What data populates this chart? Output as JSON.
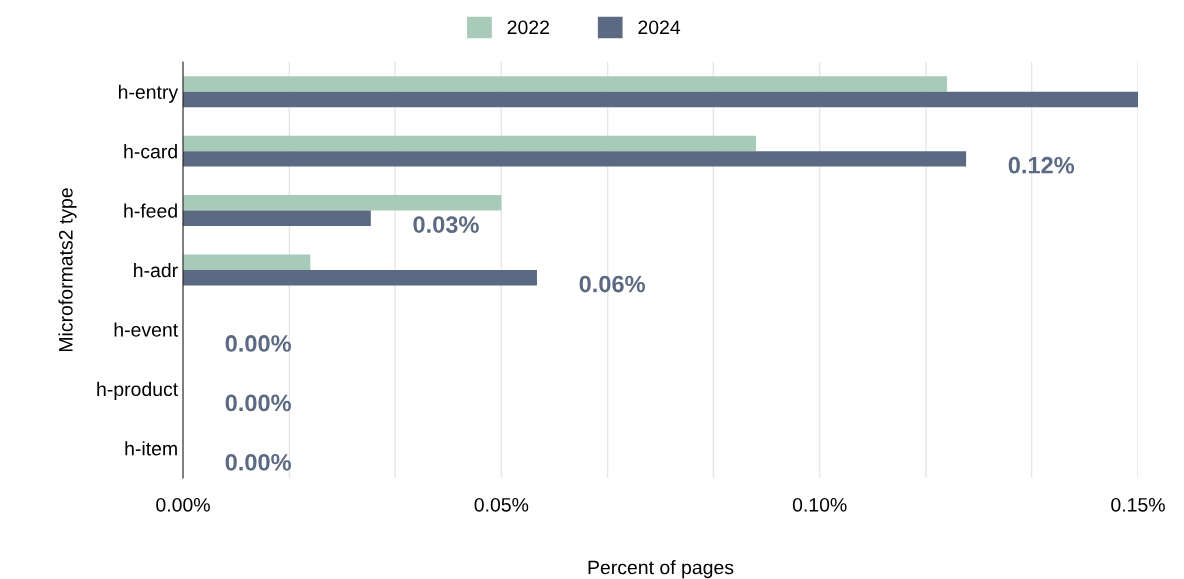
{
  "chart_data": {
    "type": "bar",
    "orientation": "horizontal",
    "xlabel": "Percent of pages",
    "ylabel": "Microformats2 type",
    "categories": [
      "h-entry",
      "h-card",
      "h-feed",
      "h-adr",
      "h-event",
      "h-product",
      "h-item"
    ],
    "series": [
      {
        "name": "2022",
        "color": "#a8cbb9",
        "values": [
          0.12,
          0.09,
          0.05,
          0.02,
          0,
          0,
          0
        ]
      },
      {
        "name": "2024",
        "color": "#5b6a82",
        "values": [
          0.15,
          0.123,
          0.0295,
          0.0556,
          0,
          0,
          0
        ],
        "value_labels": [
          null,
          "0.12%",
          "0.03%",
          "0.06%",
          "0.00%",
          "0.00%",
          "0.00%"
        ]
      }
    ],
    "xlim": [
      0,
      0.15
    ],
    "xticks": [
      {
        "value": 0,
        "label": "0.00%"
      },
      {
        "value": 0.0167,
        "label": null
      },
      {
        "value": 0.0333,
        "label": null
      },
      {
        "value": 0.05,
        "label": "0.05%"
      },
      {
        "value": 0.0667,
        "label": null
      },
      {
        "value": 0.0833,
        "label": null
      },
      {
        "value": 0.1,
        "label": "0.10%"
      },
      {
        "value": 0.1167,
        "label": null
      },
      {
        "value": 0.1333,
        "label": null
      },
      {
        "value": 0.15,
        "label": "0.15%"
      }
    ],
    "grid": "x",
    "legend": "top"
  }
}
